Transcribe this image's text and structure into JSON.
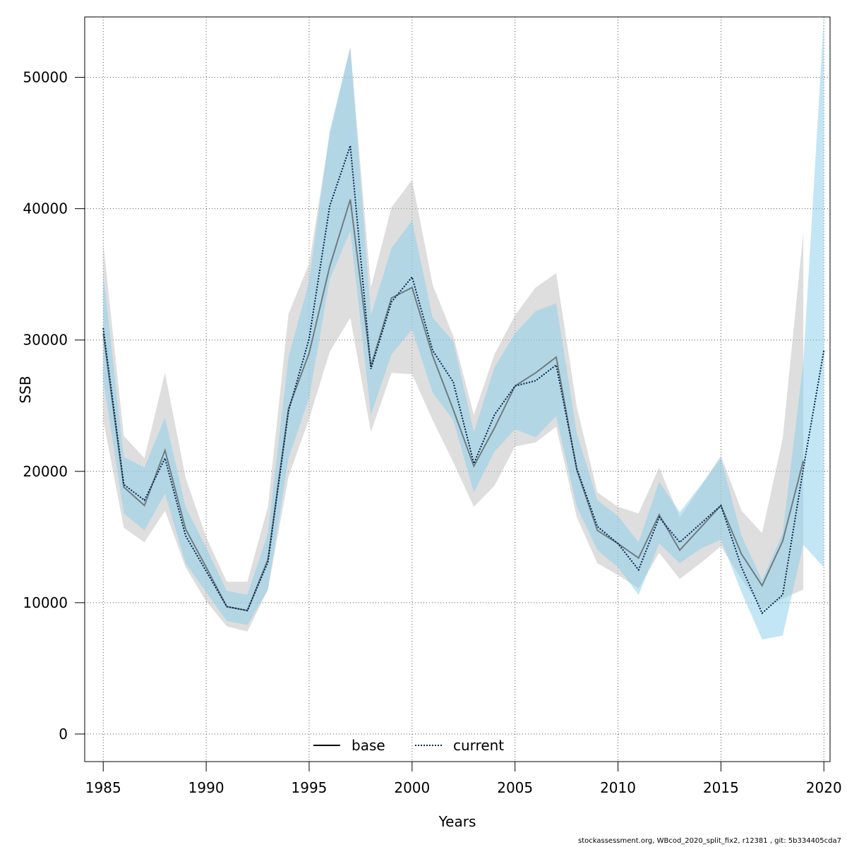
{
  "chart_data": {
    "type": "area",
    "xlabel": "Years",
    "ylabel": "SSB",
    "xlim": [
      1984.1,
      2020.3
    ],
    "ylim": [
      -2100,
      54600
    ],
    "x_ticks": [
      1985,
      1990,
      1995,
      2000,
      2005,
      2010,
      2015,
      2020
    ],
    "y_ticks": [
      0,
      10000,
      20000,
      30000,
      40000,
      50000
    ],
    "x_tick_labels": [
      "1985",
      "1990",
      "1995",
      "2000",
      "2005",
      "2010",
      "2015",
      "2020"
    ],
    "y_tick_labels": [
      "0",
      "10000",
      "20000",
      "30000",
      "40000",
      "50000"
    ],
    "grid": true,
    "legend_position": "bottom",
    "series": [
      {
        "name": "base",
        "style": "solid",
        "line_color": "#404040",
        "band_color": "#bebebe",
        "x": [
          1985,
          1986,
          1987,
          1988,
          1989,
          1990,
          1991,
          1992,
          1993,
          1994,
          1995,
          1996,
          1997,
          1998,
          1999,
          2000,
          2001,
          2002,
          2003,
          2004,
          2005,
          2006,
          2007,
          2008,
          2009,
          2010,
          2011,
          2012,
          2013,
          2014,
          2015,
          2016,
          2017,
          2018,
          2019
        ],
        "values": [
          30500,
          18800,
          17400,
          21600,
          15600,
          12700,
          9700,
          9400,
          13300,
          24800,
          29000,
          35600,
          40700,
          28000,
          33200,
          34000,
          28800,
          24700,
          20400,
          23300,
          26500,
          27500,
          28700,
          20100,
          15500,
          14500,
          13400,
          16700,
          14000,
          15700,
          17400,
          13700,
          11300,
          14700,
          20800
        ],
        "lower": [
          23900,
          15700,
          14600,
          17000,
          12700,
          10100,
          8200,
          7800,
          11000,
          19600,
          24000,
          29100,
          31700,
          23000,
          27500,
          27400,
          23900,
          20700,
          17300,
          18900,
          21900,
          22200,
          23400,
          16500,
          13000,
          12100,
          11100,
          13800,
          11800,
          13000,
          14300,
          11800,
          9500,
          10300,
          11000
        ],
        "upper": [
          37400,
          22700,
          21000,
          27500,
          19500,
          15000,
          11600,
          11600,
          17300,
          32000,
          35800,
          45700,
          52300,
          34000,
          40100,
          42200,
          34200,
          30300,
          24300,
          28900,
          31900,
          34000,
          35100,
          24900,
          18400,
          17300,
          16800,
          20300,
          16500,
          18800,
          21200,
          17000,
          15300,
          22500,
          38200
        ]
      },
      {
        "name": "current",
        "style": "dotted",
        "line_color": "#00264d",
        "band_color": "#87ceeb",
        "x": [
          1985,
          1986,
          1987,
          1988,
          1989,
          1990,
          1991,
          1992,
          1993,
          1994,
          1995,
          1996,
          1997,
          1998,
          1999,
          2000,
          2001,
          2002,
          2003,
          2004,
          2005,
          2006,
          2007,
          2008,
          2009,
          2010,
          2011,
          2012,
          2013,
          2014,
          2015,
          2016,
          2017,
          2018,
          2019,
          2020
        ],
        "values": [
          30900,
          19000,
          17800,
          21000,
          15100,
          12400,
          9700,
          9400,
          13100,
          24600,
          30100,
          40200,
          44800,
          27800,
          32900,
          34800,
          29200,
          26800,
          20600,
          24300,
          26500,
          26900,
          28100,
          20200,
          15800,
          14500,
          12500,
          16500,
          14600,
          16000,
          17400,
          12700,
          9200,
          10600,
          20200,
          29200
        ],
        "lower": [
          27000,
          16800,
          15500,
          18300,
          13000,
          10800,
          8600,
          8300,
          11000,
          21000,
          25600,
          34600,
          38300,
          24300,
          28900,
          30800,
          26000,
          23900,
          18400,
          21500,
          23200,
          22600,
          24200,
          17300,
          14000,
          12700,
          10600,
          14500,
          13000,
          14100,
          14800,
          10800,
          7200,
          7500,
          14400,
          12700
        ],
        "upper": [
          35000,
          21100,
          20300,
          24100,
          17300,
          14200,
          10900,
          10600,
          15300,
          28700,
          34500,
          45900,
          52300,
          31900,
          37000,
          39100,
          31700,
          29900,
          23000,
          27900,
          30500,
          32200,
          32800,
          22900,
          17800,
          16600,
          14600,
          19200,
          16900,
          18900,
          21000,
          15100,
          11700,
          15300,
          28300,
          54600
        ]
      }
    ]
  },
  "footer_text": "stockassessment.org, WBcod_2020_split_fix2, r12381 , git: 5b334405cda7"
}
